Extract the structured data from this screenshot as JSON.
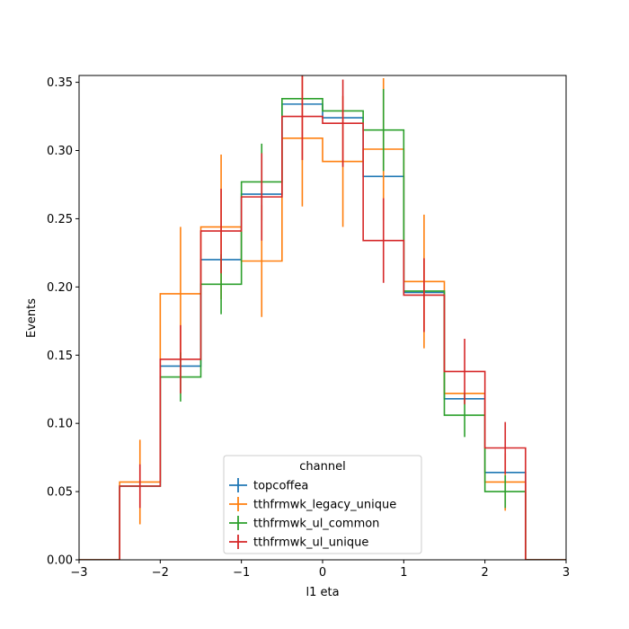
{
  "chart_data": {
    "type": "histogram-step",
    "xlabel": "l1 eta",
    "ylabel": "Events",
    "xlim": [
      -3,
      3
    ],
    "ylim": [
      0,
      0.355
    ],
    "x_ticks": [
      -3,
      -2,
      -1,
      0,
      1,
      2,
      3
    ],
    "x_tick_labels": [
      "−3",
      "−2",
      "−1",
      "0",
      "1",
      "2",
      "3"
    ],
    "y_ticks": [
      0.0,
      0.05,
      0.1,
      0.15,
      0.2,
      0.25,
      0.3,
      0.35
    ],
    "y_tick_labels": [
      "0.00",
      "0.05",
      "0.10",
      "0.15",
      "0.20",
      "0.25",
      "0.30",
      "0.35"
    ],
    "bin_edges": [
      -3.0,
      -2.5,
      -2.0,
      -1.5,
      -1.0,
      -0.5,
      0.0,
      0.5,
      1.0,
      1.5,
      2.0,
      2.5,
      3.0
    ],
    "grid": false,
    "legend": {
      "title": "channel",
      "position": "lower-center"
    },
    "series": [
      {
        "name": "topcoffea",
        "color": "#1f77b4",
        "values": [
          0.0,
          0.054,
          0.142,
          0.22,
          0.268,
          0.334,
          0.324,
          0.281,
          0.196,
          0.118,
          0.064,
          0.0
        ],
        "errors": [
          0.0,
          0.0,
          0.0,
          0.0,
          0.0,
          0.0,
          0.0,
          0.0,
          0.0,
          0.0,
          0.0,
          0.0
        ]
      },
      {
        "name": "tthfrmwk_legacy_unique",
        "color": "#ff7f0e",
        "values": [
          0.0,
          0.057,
          0.195,
          0.244,
          0.219,
          0.309,
          0.292,
          0.301,
          0.204,
          0.122,
          0.057,
          0.0
        ],
        "errors": [
          0.0,
          0.031,
          0.049,
          0.053,
          0.041,
          0.05,
          0.048,
          0.052,
          0.049,
          0.0,
          0.021,
          0.0
        ]
      },
      {
        "name": "tthfrmwk_ul_common",
        "color": "#2ca02c",
        "values": [
          0.0,
          0.054,
          0.134,
          0.202,
          0.277,
          0.338,
          0.329,
          0.315,
          0.197,
          0.106,
          0.05,
          0.0
        ],
        "errors": [
          0.0,
          0.0,
          0.018,
          0.022,
          0.028,
          0.0,
          0.0,
          0.03,
          0.0,
          0.016,
          0.012,
          0.0
        ]
      },
      {
        "name": "tthfrmwk_ul_unique",
        "color": "#d62728",
        "values": [
          0.0,
          0.054,
          0.147,
          0.241,
          0.266,
          0.325,
          0.32,
          0.234,
          0.194,
          0.138,
          0.082,
          0.0
        ],
        "errors": [
          0.0,
          0.016,
          0.025,
          0.031,
          0.032,
          0.032,
          0.032,
          0.031,
          0.027,
          0.024,
          0.019,
          0.0
        ]
      }
    ]
  }
}
